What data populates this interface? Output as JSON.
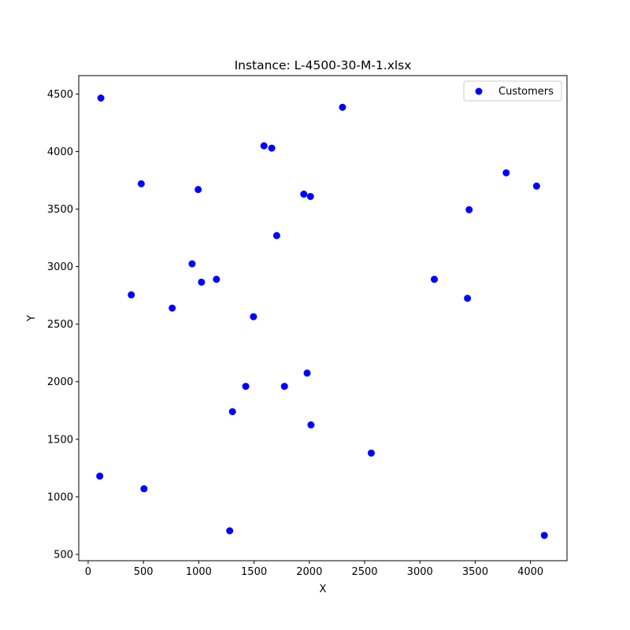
{
  "chart_data": {
    "type": "scatter",
    "title": "Instance: L-4500-30-M-1.xlsx",
    "xlabel": "X",
    "ylabel": "Y",
    "xlim": [
      -85,
      4330
    ],
    "ylim": [
      445,
      4660
    ],
    "xticks": [
      0,
      500,
      1000,
      1500,
      2000,
      2500,
      3000,
      3500,
      4000
    ],
    "yticks": [
      500,
      1000,
      1500,
      2000,
      2500,
      3000,
      3500,
      4000,
      4500
    ],
    "grid": false,
    "legend_position": "top-right",
    "series": [
      {
        "name": "Customers",
        "color": "#0000ff",
        "points": [
          [
            115,
            4465
          ],
          [
            2300,
            4385
          ],
          [
            1590,
            4050
          ],
          [
            1660,
            4030
          ],
          [
            3780,
            3815
          ],
          [
            480,
            3720
          ],
          [
            4055,
            3700
          ],
          [
            995,
            3670
          ],
          [
            1950,
            3630
          ],
          [
            2010,
            3610
          ],
          [
            3445,
            3495
          ],
          [
            1705,
            3270
          ],
          [
            940,
            3025
          ],
          [
            1160,
            2890
          ],
          [
            1025,
            2865
          ],
          [
            3130,
            2890
          ],
          [
            390,
            2755
          ],
          [
            3430,
            2725
          ],
          [
            760,
            2640
          ],
          [
            1495,
            2565
          ],
          [
            1980,
            2075
          ],
          [
            1425,
            1960
          ],
          [
            1775,
            1960
          ],
          [
            1305,
            1740
          ],
          [
            2015,
            1625
          ],
          [
            2560,
            1380
          ],
          [
            105,
            1180
          ],
          [
            505,
            1070
          ],
          [
            1280,
            705
          ],
          [
            4125,
            665
          ]
        ]
      }
    ]
  }
}
